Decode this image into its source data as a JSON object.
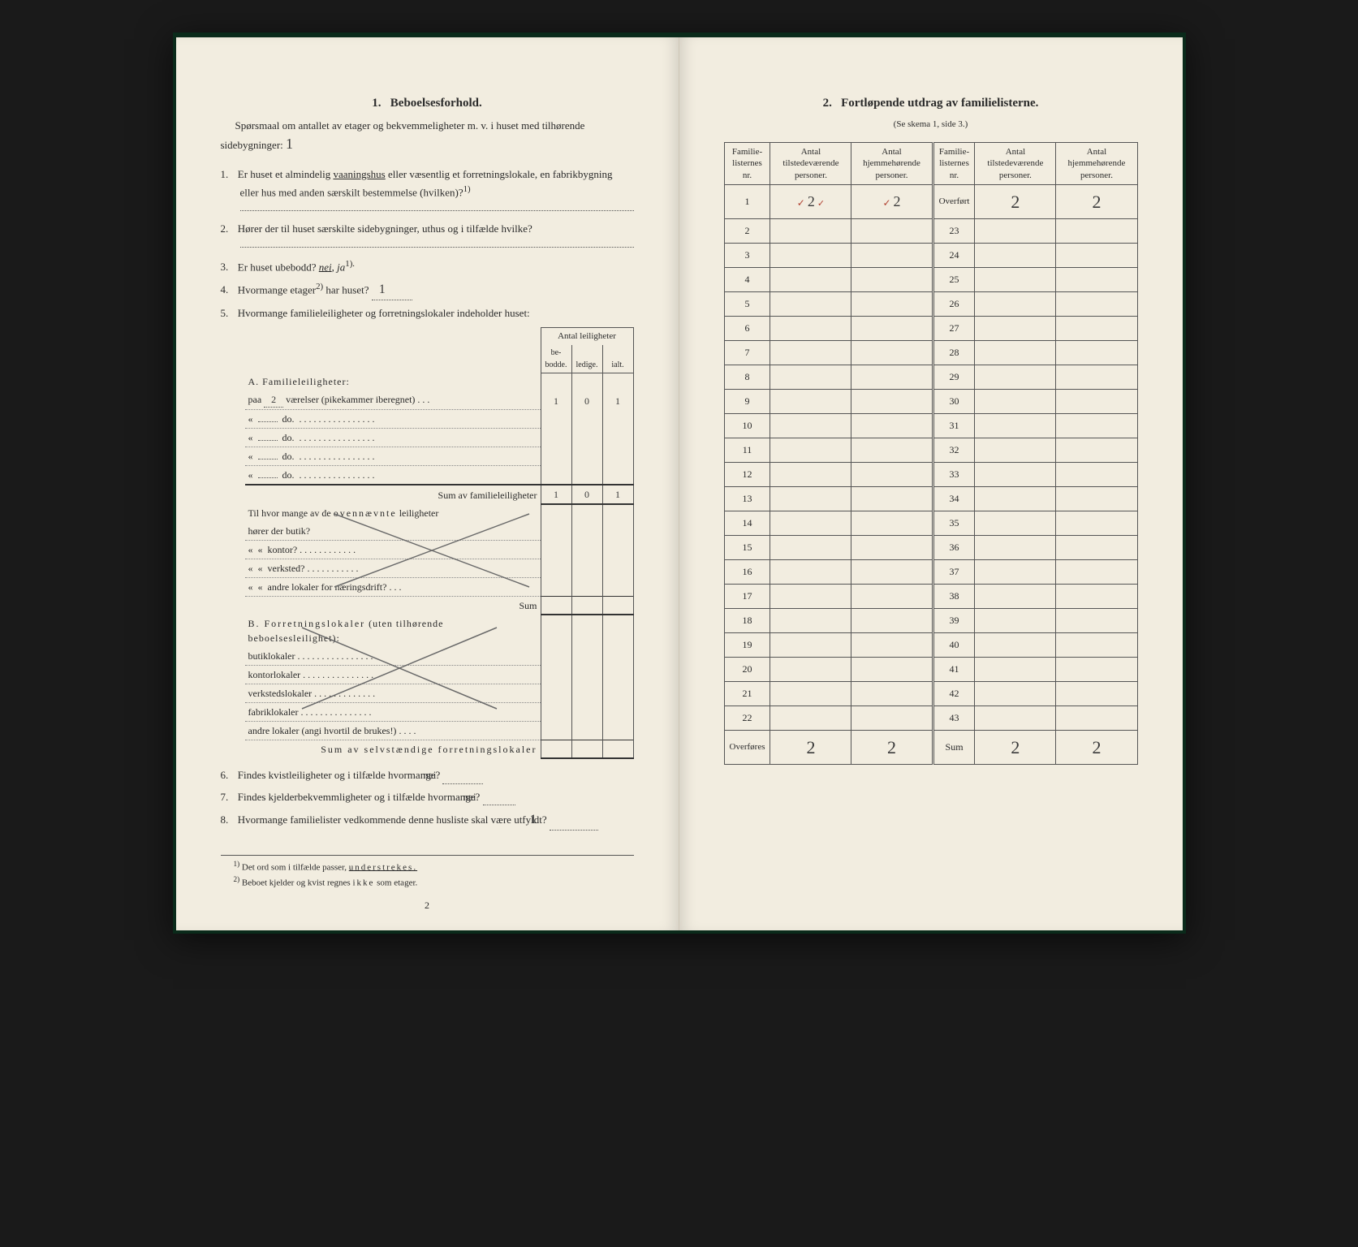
{
  "left": {
    "heading_num": "1.",
    "heading": "Beboelsesforhold.",
    "intro_text": "Spørsmaal om antallet av etager og bekvemmeligheter m. v. i huset med tilhørende sidebygninger:",
    "intro_handwritten": "1",
    "q1_pre": "Er huset et almindelig ",
    "q1_underlined": "vaaningshus",
    "q1_post": " eller væsentlig et forretningslokale, en fabrikbygning eller hus med anden særskilt bestemmelse (hvilken)?",
    "q1_sup": "1)",
    "q2": "Hører der til huset særskilte sidebygninger, uthus og i tilfælde hvilke?",
    "q3_pre": "Er huset ubebodd? ",
    "q3_nei": "nei",
    "q3_mid": ", ",
    "q3_ja": "ja",
    "q3_sup": "1).",
    "q4_pre": "Hvormange etager",
    "q4_sup": "2)",
    "q4_post": " har huset?",
    "q4_value": "1",
    "q5": "Hvormange familieleiligheter og forretningslokaler indeholder huset:",
    "leil_header": "Antal leiligheter",
    "col_bebodde": "be-\nbodde.",
    "col_ledige": "ledige.",
    "col_ialt": "ialt.",
    "A_heading": "A. Familieleiligheter:",
    "A_paa": "paa",
    "A_paa_val": "2",
    "A_paa_rest": "værelser (pikekammer iberegnet) . . .",
    "A_row_vals": [
      "1",
      "0",
      "1"
    ],
    "A_do": "do.",
    "A_sum_label": "Sum av familieleiligheter",
    "A_sum_vals": [
      "1",
      "0",
      "1"
    ],
    "A_q_pre": "Til hvor mange av de ",
    "A_q_spaced": "ovennævnte",
    "A_q_post": " leiligheter",
    "A_butik": "hører der butik?",
    "A_kontor": "kontor?",
    "A_verksted": "verksted?",
    "A_andre": "andre lokaler for næringsdrift?",
    "A_sum2": "Sum",
    "B_heading": "B. Forretningslokaler",
    "B_heading_post": " (uten tilhørende beboelsesleilighet):",
    "B_rows": [
      "butiklokaler",
      "kontorlokaler",
      "verkstedslokaler",
      "fabriklokaler",
      "andre lokaler (angi hvortil de brukes!)"
    ],
    "B_sum": "Sum av selvstændige forretningslokaler",
    "q6": "Findes kvistleiligheter og i tilfælde hvormange?",
    "q6_val": "nei",
    "q7": "Findes kjelderbekvemmligheter og i tilfælde hvormange?",
    "q7_val": "nei",
    "q8": "Hvormange familielister vedkommende denne husliste skal være utfyldt?",
    "q8_val": "1",
    "fn1_num": "1)",
    "fn1": "Det ord som i tilfælde passer, ",
    "fn1_u": "understrekes.",
    "fn2_num": "2)",
    "fn2": "Beboet kjelder og kvist regnes ",
    "fn2_spaced": "ikke",
    "fn2_post": " som etager.",
    "page_num": "2"
  },
  "right": {
    "heading_num": "2.",
    "heading": "Fortløpende utdrag av familielisterne.",
    "subheading": "(Se skema 1, side 3.)",
    "col_nr": "Familie-\nlisternes\nnr.",
    "col_tilstede": "Antal\ntilstedeværende\npersoner.",
    "col_hjemme": "Antal\nhjemmehørende\npersoner.",
    "overfort": "Overført",
    "overfores": "Overføres",
    "sum": "Sum",
    "left_nrs": [
      "1",
      "2",
      "3",
      "4",
      "5",
      "6",
      "7",
      "8",
      "9",
      "10",
      "11",
      "12",
      "13",
      "14",
      "15",
      "16",
      "17",
      "18",
      "19",
      "20",
      "21",
      "22"
    ],
    "right_nrs": [
      "",
      "23",
      "24",
      "25",
      "26",
      "27",
      "28",
      "29",
      "30",
      "31",
      "32",
      "33",
      "34",
      "35",
      "36",
      "37",
      "38",
      "39",
      "40",
      "41",
      "42",
      "43"
    ],
    "row1_tilstede": "2",
    "row1_hjemme": "2",
    "overfort_tilstede": "2",
    "overfort_hjemme": "2",
    "overfores_tilstede": "2",
    "overfores_hjemme": "2",
    "sum_tilstede": "2",
    "sum_hjemme": "2",
    "check": "✓"
  },
  "colors": {
    "page_bg": "#f2ede0",
    "outer_bg": "#1a1a1a",
    "binding": "#0a2a1a",
    "ink": "#2a2a2a",
    "pencil": "#6a6a6a",
    "red_mark": "#b04030"
  }
}
